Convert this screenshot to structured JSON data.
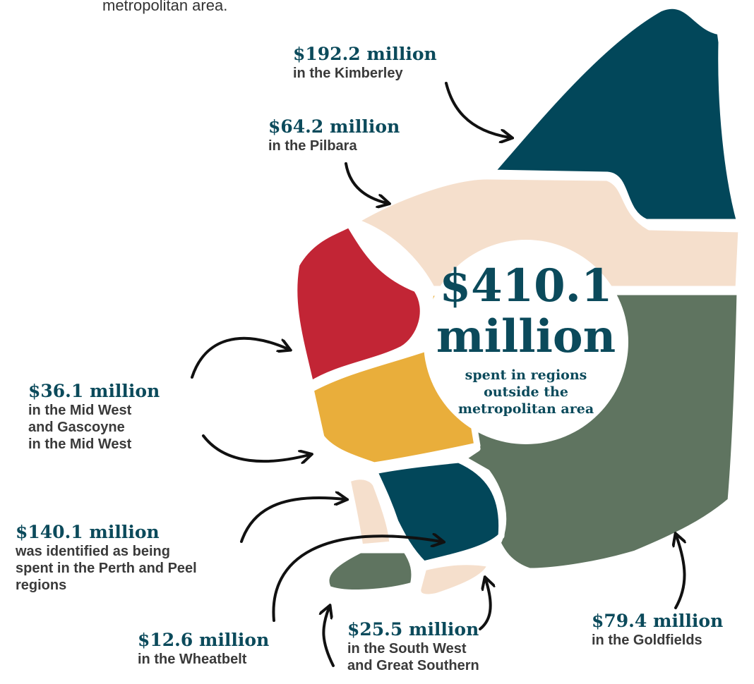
{
  "intro_fragment": "metropolitan area.",
  "total": {
    "amount": "$410.1",
    "unit": "million",
    "caption": [
      "spent in regions",
      "outside the",
      "metropolitan area"
    ]
  },
  "regions": [
    {
      "amount": "$192.2 million",
      "lines": [
        "in the Kimberley"
      ]
    },
    {
      "amount": "$64.2 million",
      "lines": [
        "in the Pilbara"
      ]
    },
    {
      "amount": "$36.1 million",
      "lines": [
        "in the Mid West",
        "and Gascoyne",
        "in the Mid West"
      ]
    },
    {
      "amount": "$140.1 million",
      "lines": [
        "was identified as being",
        "spent in the Perth and Peel",
        "regions"
      ]
    },
    {
      "amount": "$12.6 million",
      "lines": [
        "in the Wheatbelt"
      ]
    },
    {
      "amount": "$25.5 million",
      "lines": [
        "in the South West",
        "and Great Southern"
      ]
    },
    {
      "amount": "$79.4 million",
      "lines": [
        "in the Goldfields"
      ]
    }
  ]
}
